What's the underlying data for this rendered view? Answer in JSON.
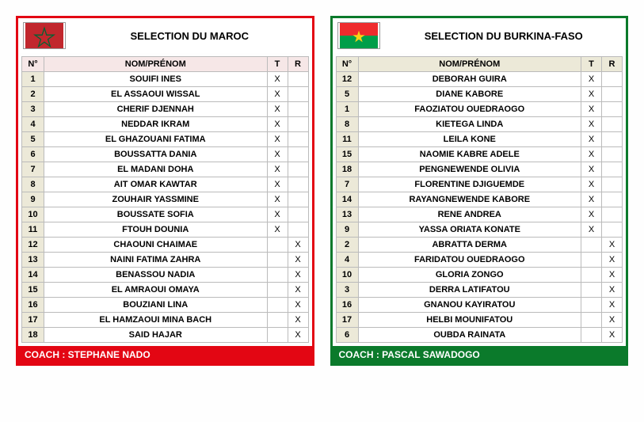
{
  "columns": {
    "num": "N°",
    "name": "NOM/PRÉNOM",
    "t": "T",
    "r": "R"
  },
  "teams": [
    {
      "key": "morocco",
      "title": "SELECTION DU MAROC",
      "border_color": "#e30613",
      "header_bg": "#f6e7e7",
      "flag_svg": "morocco",
      "coach_label": "COACH : STEPHANE NADO",
      "players": [
        {
          "num": "1",
          "name": "SOUIFI INES",
          "t": "X",
          "r": ""
        },
        {
          "num": "2",
          "name": "EL ASSAOUI WISSAL",
          "t": "X",
          "r": ""
        },
        {
          "num": "3",
          "name": "CHERIF DJENNAH",
          "t": "X",
          "r": ""
        },
        {
          "num": "4",
          "name": "NEDDAR IKRAM",
          "t": "X",
          "r": ""
        },
        {
          "num": "5",
          "name": "EL  GHAZOUANI FATIMA",
          "t": "X",
          "r": ""
        },
        {
          "num": "6",
          "name": "BOUSSATTA DANIA",
          "t": "X",
          "r": ""
        },
        {
          "num": "7",
          "name": "EL MADANI DOHA",
          "t": "X",
          "r": ""
        },
        {
          "num": "8",
          "name": "AIT OMAR KAWTAR",
          "t": "X",
          "r": ""
        },
        {
          "num": "9",
          "name": "ZOUHAIR YASSMINE",
          "t": "X",
          "r": ""
        },
        {
          "num": "10",
          "name": "BOUSSATE SOFIA",
          "t": "X",
          "r": ""
        },
        {
          "num": "11",
          "name": "FTOUH DOUNIA",
          "t": "X",
          "r": ""
        },
        {
          "num": "12",
          "name": "CHAOUNI CHAIMAE",
          "t": "",
          "r": "X"
        },
        {
          "num": "13",
          "name": "NAINI FATIMA ZAHRA",
          "t": "",
          "r": "X"
        },
        {
          "num": "14",
          "name": "BENASSOU NADIA",
          "t": "",
          "r": "X"
        },
        {
          "num": "15",
          "name": "EL AMRAOUI OMAYA",
          "t": "",
          "r": "X"
        },
        {
          "num": "16",
          "name": "BOUZIANI LINA",
          "t": "",
          "r": "X"
        },
        {
          "num": "17",
          "name": "EL HAMZAOUI MINA BACH",
          "t": "",
          "r": "X"
        },
        {
          "num": "18",
          "name": "SAID HAJAR",
          "t": "",
          "r": "X"
        }
      ]
    },
    {
      "key": "burkina",
      "title": "SELECTION DU BURKINA-FASO",
      "border_color": "#0b7a2b",
      "header_bg": "#ece9d8",
      "flag_svg": "burkina",
      "coach_label": "COACH :  PASCAL SAWADOGO",
      "players": [
        {
          "num": "12",
          "name": "DEBORAH GUIRA",
          "t": "X",
          "r": ""
        },
        {
          "num": "5",
          "name": "DIANE KABORE",
          "t": "X",
          "r": ""
        },
        {
          "num": "1",
          "name": "FAOZIATOU OUEDRAOGO",
          "t": "X",
          "r": ""
        },
        {
          "num": "8",
          "name": "KIETEGA LINDA",
          "t": "X",
          "r": ""
        },
        {
          "num": "11",
          "name": "LEILA KONE",
          "t": "X",
          "r": ""
        },
        {
          "num": "15",
          "name": "NAOMIE KABRE ADELE",
          "t": "X",
          "r": ""
        },
        {
          "num": "18",
          "name": "PENGNEWENDE OLIVIA",
          "t": "X",
          "r": ""
        },
        {
          "num": "7",
          "name": "FLORENTINE DJIGUEMDE",
          "t": "X",
          "r": ""
        },
        {
          "num": "14",
          "name": "RAYANGNEWENDE KABORE",
          "t": "X",
          "r": ""
        },
        {
          "num": "13",
          "name": "RENE ANDREA",
          "t": "X",
          "r": ""
        },
        {
          "num": "9",
          "name": "YASSA ORIATA KONATE",
          "t": "X",
          "r": ""
        },
        {
          "num": "2",
          "name": "ABRATTA DERMA",
          "t": "",
          "r": "X"
        },
        {
          "num": "4",
          "name": "FARIDATOU OUEDRAOGO",
          "t": "",
          "r": "X"
        },
        {
          "num": "10",
          "name": "GLORIA ZONGO",
          "t": "",
          "r": "X"
        },
        {
          "num": "3",
          "name": "DERRA LATIFATOU",
          "t": "",
          "r": "X"
        },
        {
          "num": "16",
          "name": "GNANOU KAYIRATOU",
          "t": "",
          "r": "X"
        },
        {
          "num": "17",
          "name": "HELBI MOUNIFATOU",
          "t": "",
          "r": "X"
        },
        {
          "num": "6",
          "name": "OUBDA RAINATA",
          "t": "",
          "r": "X"
        }
      ]
    }
  ]
}
